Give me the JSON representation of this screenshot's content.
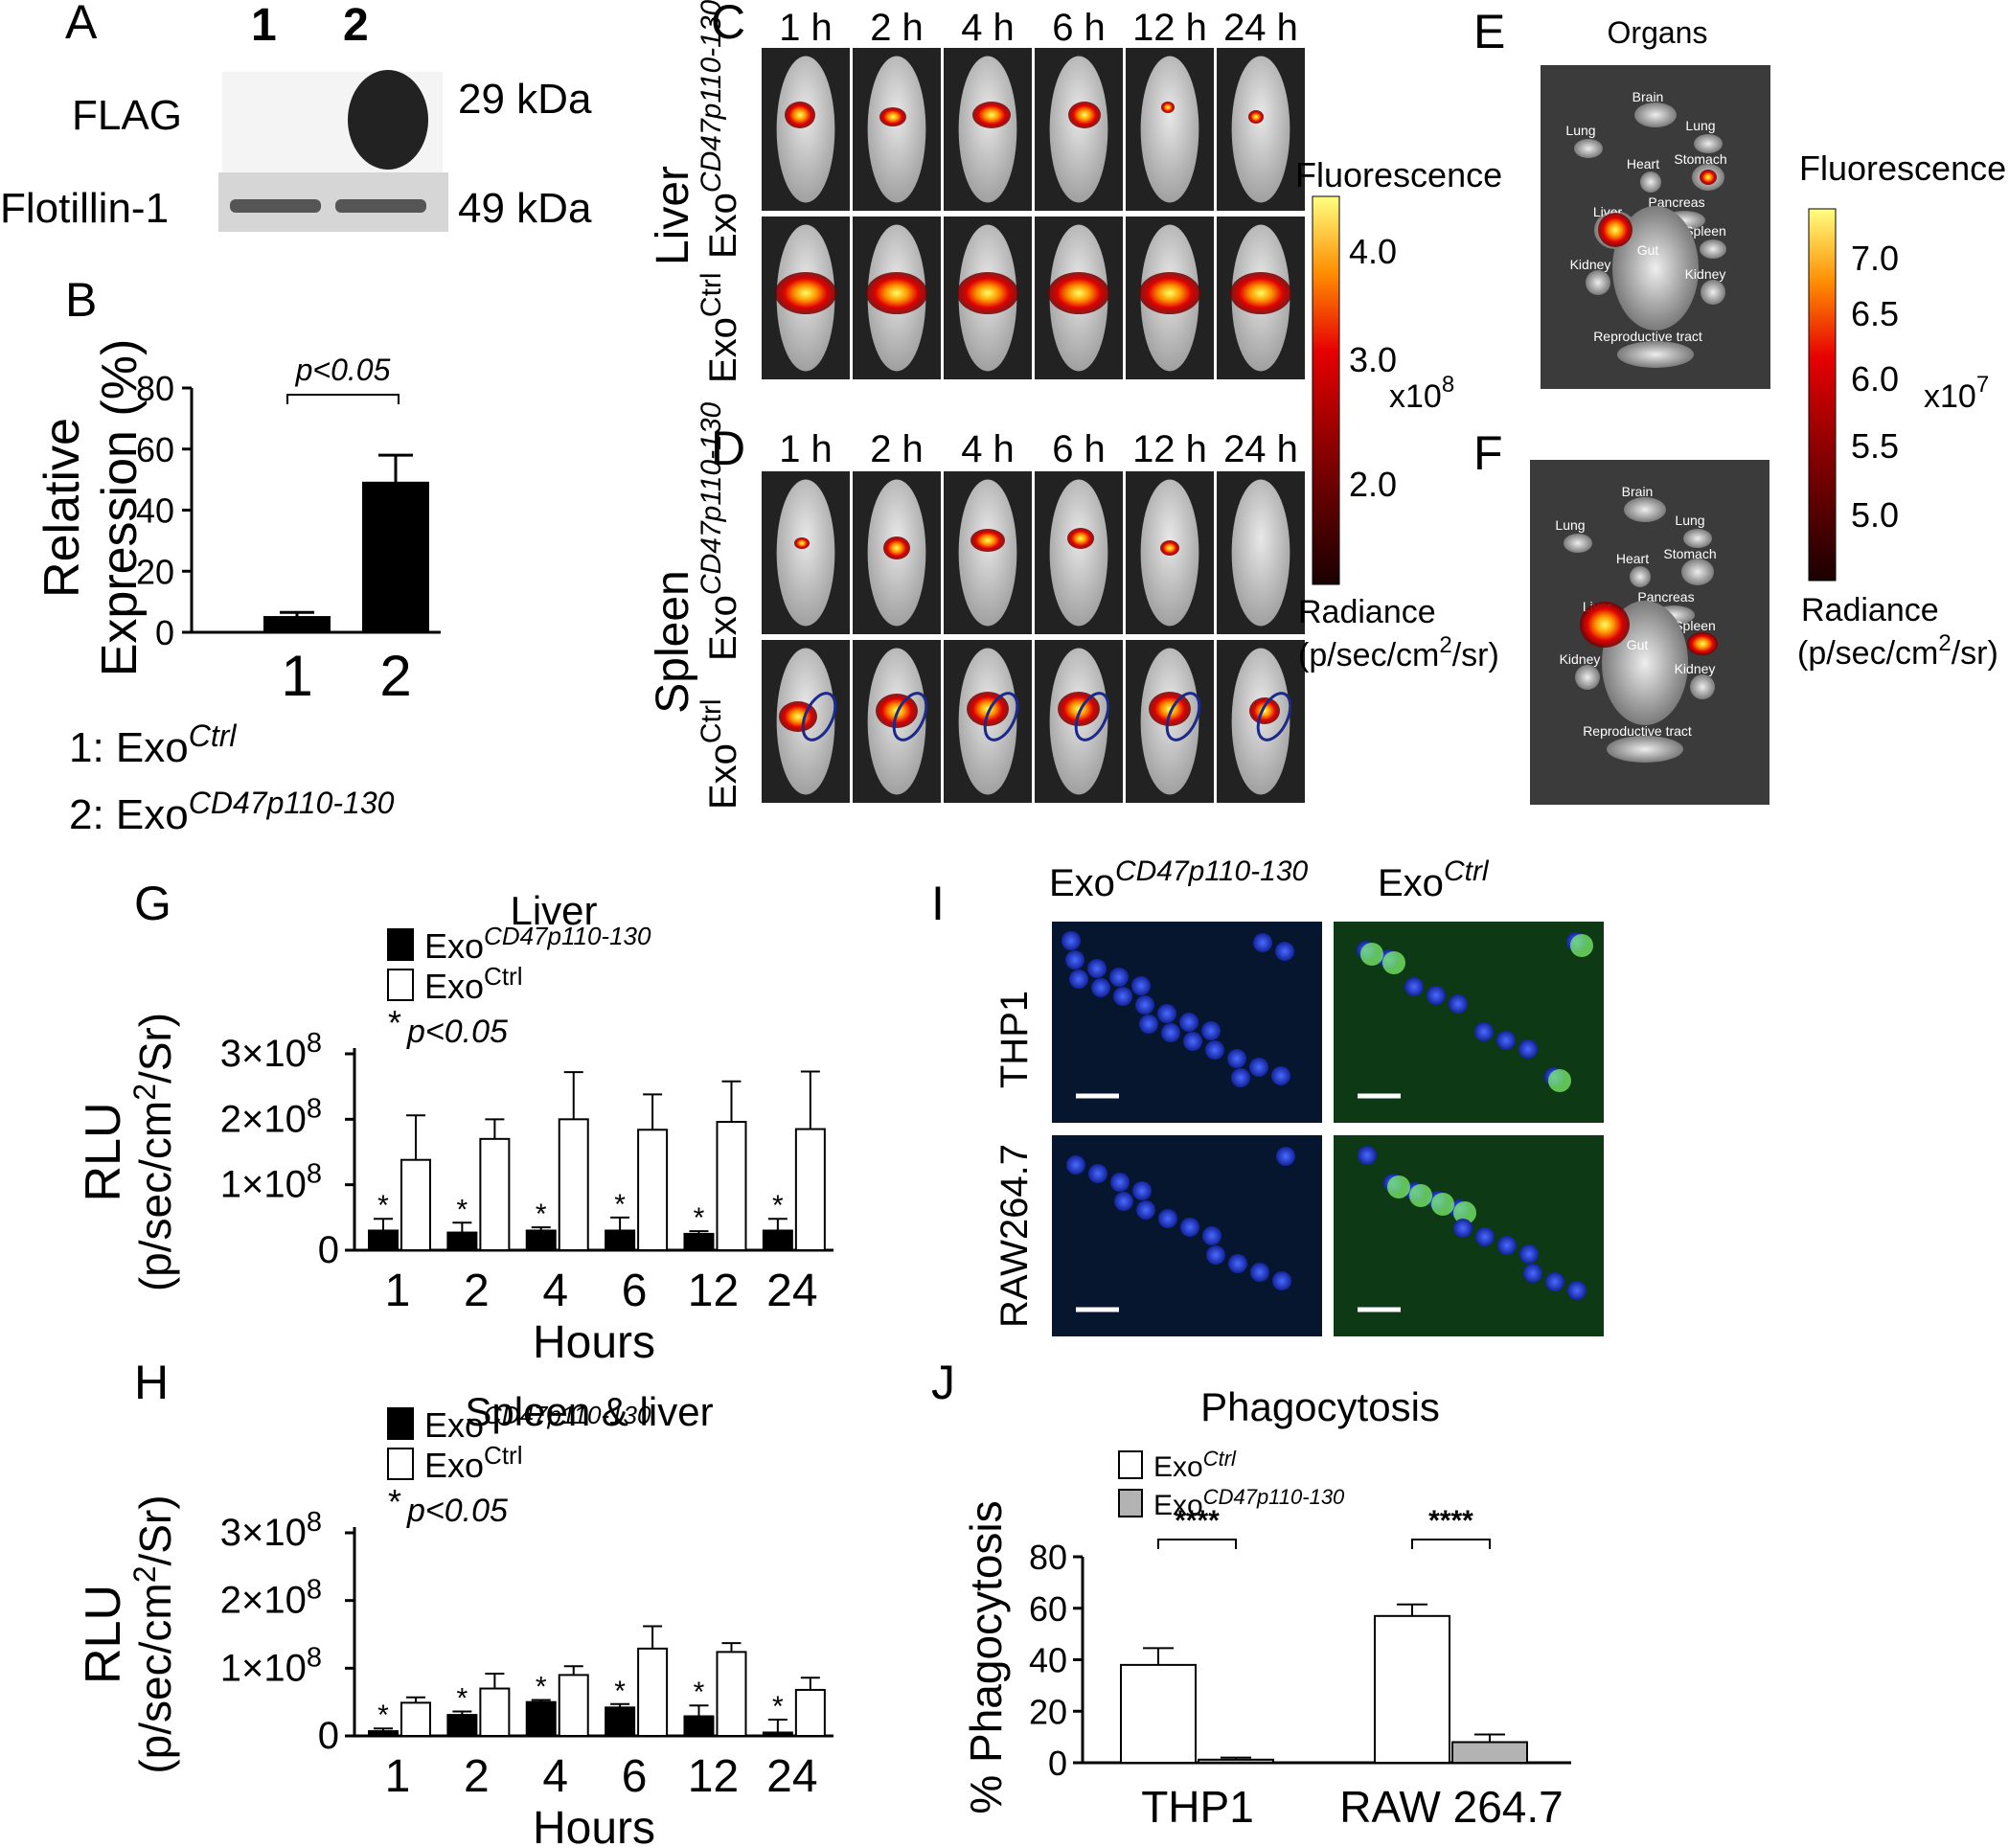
{
  "panel_letters": [
    "A",
    "B",
    "C",
    "D",
    "E",
    "F",
    "G",
    "H",
    "I",
    "J"
  ],
  "western_blot": {
    "lanes": [
      "1",
      "2"
    ],
    "rows": [
      {
        "label": "FLAG",
        "size": "29 kDa"
      },
      {
        "label": "Flotillin-1",
        "size": "49 kDa"
      }
    ]
  },
  "legend_b": {
    "item1": {
      "prefix": "1: Exo",
      "sup": "Ctrl"
    },
    "item2": {
      "prefix": "2: Exo",
      "sup": "CD47p110-130"
    }
  },
  "imaging_cd": {
    "timepoints": [
      "1 h",
      "2 h",
      "4 h",
      "6 h",
      "12 h",
      "24 h"
    ],
    "organ_c": "Liver",
    "organ_d": "Spleen",
    "group_cd47": {
      "base": "Exo",
      "sup": "CD47p110-130"
    },
    "group_ctrl": {
      "base": "Exo",
      "sup": "Ctrl"
    },
    "colorbar": {
      "title": "Fluorescence",
      "ticks": [
        "4.0",
        "3.0",
        "2.0"
      ],
      "scale": "x10",
      "scale_exp": "8",
      "unit_line1": "Radiance",
      "unit_line2": "(p/sec/cm",
      "unit_sup": "2",
      "unit_end": "/sr)"
    }
  },
  "organs_ef": {
    "title": "Organs",
    "labels_e": [
      "Brain",
      "Lung",
      "Lung",
      "Heart",
      "Stomach",
      "Liver",
      "Pancreas",
      "Spleen",
      "Kidney",
      "Gut",
      "Kidney",
      "Reproductive tract"
    ],
    "labels_f": [
      "Brain",
      "Lung",
      "Lung",
      "Heart",
      "Stomach",
      "Liver",
      "Pancreas",
      "Spleen",
      "Kidney",
      "Gut",
      "Kidney",
      "Reproductive tract"
    ],
    "colorbar": {
      "title": "Fluorescence",
      "ticks": [
        "7.0",
        "6.5",
        "6.0",
        "5.5",
        "5.0"
      ],
      "scale": "x10",
      "scale_exp": "7",
      "unit_line1": "Radiance",
      "unit_line2": "(p/sec/cm",
      "unit_sup": "2",
      "unit_end": "/sr)"
    }
  },
  "microscopy_i": {
    "columns": [
      {
        "base": "Exo",
        "sup": "CD47p110-130"
      },
      {
        "base": "Exo",
        "sup": "Ctrl"
      }
    ],
    "rows": [
      "THP1",
      "RAW264.7"
    ]
  },
  "chart_data": [
    {
      "panel": "B",
      "type": "bar",
      "categories": [
        "1",
        "2"
      ],
      "values": [
        5,
        49
      ],
      "errors": [
        1.5,
        9
      ],
      "ylim": [
        0,
        80
      ],
      "yticks": [
        "0",
        "20",
        "40",
        "60",
        "80"
      ],
      "ylabel_line1": "Relative",
      "ylabel_line2": "Expression (%)",
      "annotation": "p<0.05",
      "colors": [
        "#000000",
        "#000000"
      ]
    },
    {
      "panel": "G",
      "type": "bar",
      "title": "Liver",
      "categories": [
        "1",
        "2",
        "4",
        "6",
        "12",
        "24"
      ],
      "series": [
        {
          "name": "Exo",
          "name_sup": "CD47p110-130",
          "values": [
            30000000.0,
            27000000.0,
            30000000.0,
            30000000.0,
            25000000.0,
            30000000.0
          ],
          "errors": [
            18000000.0,
            15000000.0,
            5000000.0,
            20000000.0,
            4000000.0,
            18000000.0
          ],
          "color": "#000000"
        },
        {
          "name": "Exo",
          "name_sup": "Ctrl",
          "values": [
            138000000.0,
            170000000.0,
            200000000.0,
            184000000.0,
            196000000.0,
            185000000.0
          ],
          "errors": [
            68000000.0,
            30000000.0,
            72000000.0,
            54000000.0,
            62000000.0,
            88000000.0
          ],
          "color": "#ffffff"
        }
      ],
      "ylim": [
        0,
        300000000.0
      ],
      "yticks": [
        "0",
        "1×10",
        "2×10",
        "3×10"
      ],
      "ytick_exp": "8",
      "xlabel": "Hours",
      "ylabel_line1": "RLU",
      "ylabel_line2": "(p/sec/cm",
      "ylabel_sup": "2",
      "ylabel_end": "/Sr)",
      "sig_marker": "*",
      "sig_text": "p<0.05"
    },
    {
      "panel": "H",
      "type": "bar",
      "title": "Spleen & liver",
      "categories": [
        "1",
        "2",
        "4",
        "6",
        "12",
        "24"
      ],
      "series": [
        {
          "name": "Exo",
          "name_sup": "CD47p110-130",
          "values": [
            7000000.0,
            31000000.0,
            50000000.0,
            42000000.0,
            29000000.0,
            5000000.0
          ],
          "errors": [
            4000000.0,
            5000000.0,
            3000000.0,
            5000000.0,
            16000000.0,
            19000000.0
          ],
          "color": "#000000"
        },
        {
          "name": "Exo",
          "name_sup": "Ctrl",
          "values": [
            49000000.0,
            70000000.0,
            90000000.0,
            129000000.0,
            124000000.0,
            68000000.0
          ],
          "errors": [
            8000000.0,
            22000000.0,
            13000000.0,
            33000000.0,
            13000000.0,
            18000000.0
          ],
          "color": "#ffffff"
        }
      ],
      "ylim": [
        0,
        300000000.0
      ],
      "yticks": [
        "0",
        "1×10",
        "2×10",
        "3×10"
      ],
      "ytick_exp": "8",
      "xlabel": "Hours",
      "ylabel_line1": "RLU",
      "ylabel_line2": "(p/sec/cm",
      "ylabel_sup": "2",
      "ylabel_end": "/Sr)",
      "sig_marker": "*",
      "sig_text": "p<0.05"
    },
    {
      "panel": "J",
      "type": "bar",
      "title": "Phagocytosis",
      "categories": [
        "THP1",
        "RAW 264.7"
      ],
      "series": [
        {
          "name": "Exo",
          "name_sup": "Ctrl",
          "values": [
            38,
            57
          ],
          "errors": [
            6.5,
            4.5
          ],
          "color": "#ffffff"
        },
        {
          "name": "Exo",
          "name_sup": "CD47p110-130",
          "values": [
            1.2,
            8
          ],
          "errors": [
            0.8,
            3
          ],
          "color": "#b3b3b3"
        }
      ],
      "ylim": [
        0,
        80
      ],
      "yticks": [
        "0",
        "20",
        "40",
        "60",
        "80"
      ],
      "ylabel": "% Phagocytosis",
      "sig_text": "****"
    }
  ]
}
